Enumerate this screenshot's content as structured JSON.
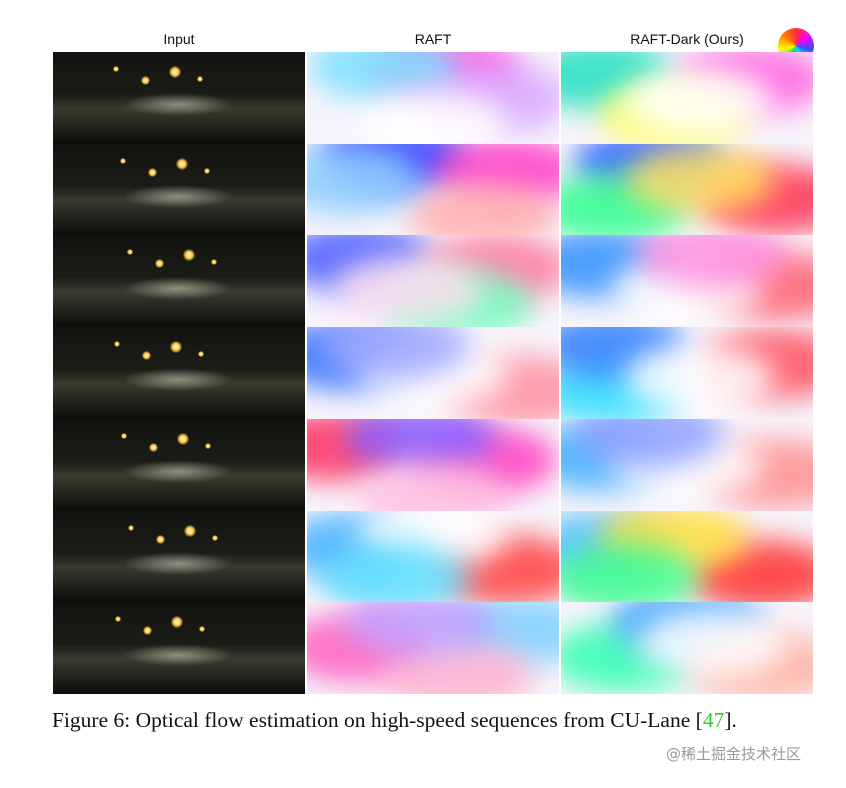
{
  "figure": {
    "headers": {
      "input": "Input",
      "raft": "RAFT",
      "raft_dark": "RAFT-Dark (Ours)"
    },
    "rows": 7,
    "color_wheel_icon": "color-wheel-icon"
  },
  "caption": {
    "prefix": "Figure 6:  Optical flow estimation on high-speed sequences from CU-Lane [",
    "ref": "47",
    "suffix": "]."
  },
  "watermark": "@稀土掘金技术社区",
  "colors": {
    "reference_link": "#2ecc2e",
    "night_background": "#0a0a08"
  }
}
